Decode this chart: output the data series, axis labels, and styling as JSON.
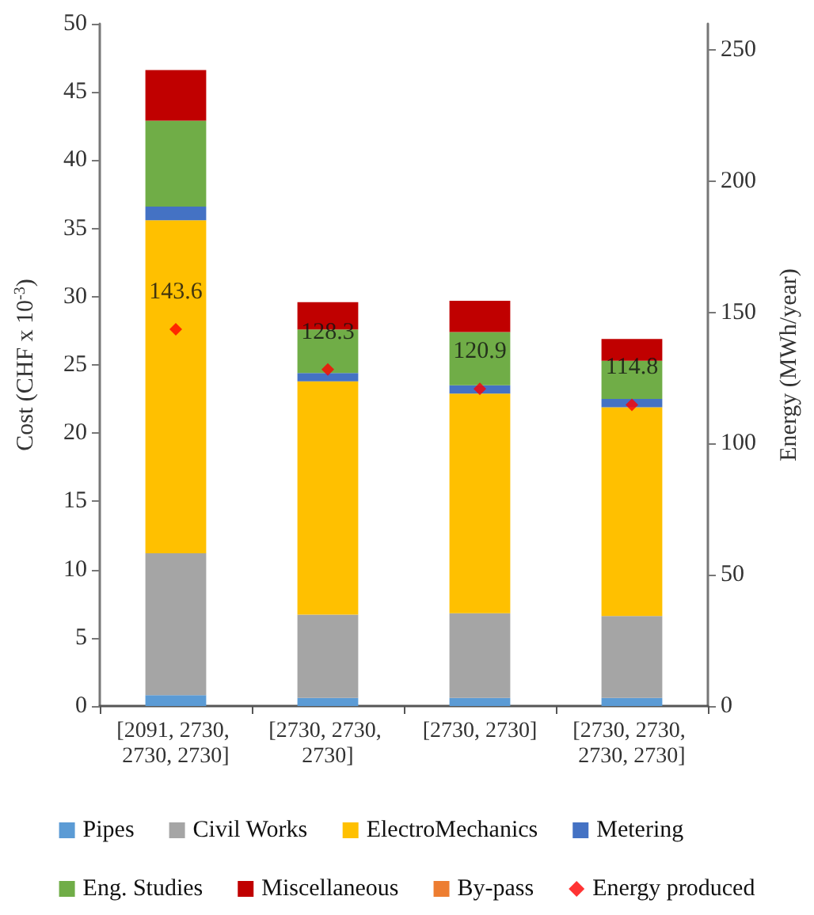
{
  "chart_data": {
    "type": "bar",
    "stacked": true,
    "ylabel": "Cost (CHF x 10$^{-3}$)",
    "y2label": "Energy (MWh/year)",
    "categories": [
      "[2091, 2730, 2730, 2730]",
      "[2730, 2730, 2730]",
      "[2730, 2730]",
      "[2730, 2730, 2730, 2730]"
    ],
    "ylim": [
      0,
      50
    ],
    "yticks": [
      0,
      5,
      10,
      15,
      20,
      25,
      30,
      35,
      40,
      45,
      50
    ],
    "y2lim": [
      0,
      260
    ],
    "y2ticks": [
      0,
      50,
      100,
      150,
      200,
      250
    ],
    "grid": false,
    "legend": "bottom",
    "series": [
      {
        "name": "Pipes",
        "color": "#5b9bd5",
        "values": [
          0.8,
          0.6,
          0.6,
          0.6
        ]
      },
      {
        "name": "Civil Works",
        "color": "#a5a5a5",
        "values": [
          10.4,
          6.1,
          6.2,
          6.0
        ]
      },
      {
        "name": "ElectroMechanics",
        "color": "#ffc000",
        "values": [
          24.4,
          17.1,
          16.1,
          15.3
        ]
      },
      {
        "name": "Metering",
        "color": "#4472c4",
        "values": [
          1.0,
          0.6,
          0.6,
          0.6
        ]
      },
      {
        "name": "Eng. Studies",
        "color": "#70ad47",
        "values": [
          6.3,
          3.2,
          3.9,
          2.8
        ]
      },
      {
        "name": "Miscellaneous",
        "color": "#c00000",
        "values": [
          3.7,
          2.0,
          2.3,
          1.6
        ]
      },
      {
        "name": "By-pass",
        "color": "#ed7d31",
        "values": [
          0,
          0,
          0,
          0
        ]
      },
      {
        "name": "Energy produced",
        "type": "scatter",
        "axis": "y2",
        "marker": "diamond",
        "color": "#ff0000",
        "values": [
          143.6,
          128.3,
          120.9,
          114.8
        ],
        "value_labels": [
          "143.6",
          "128.3",
          "120.9",
          "114.8"
        ]
      }
    ]
  }
}
